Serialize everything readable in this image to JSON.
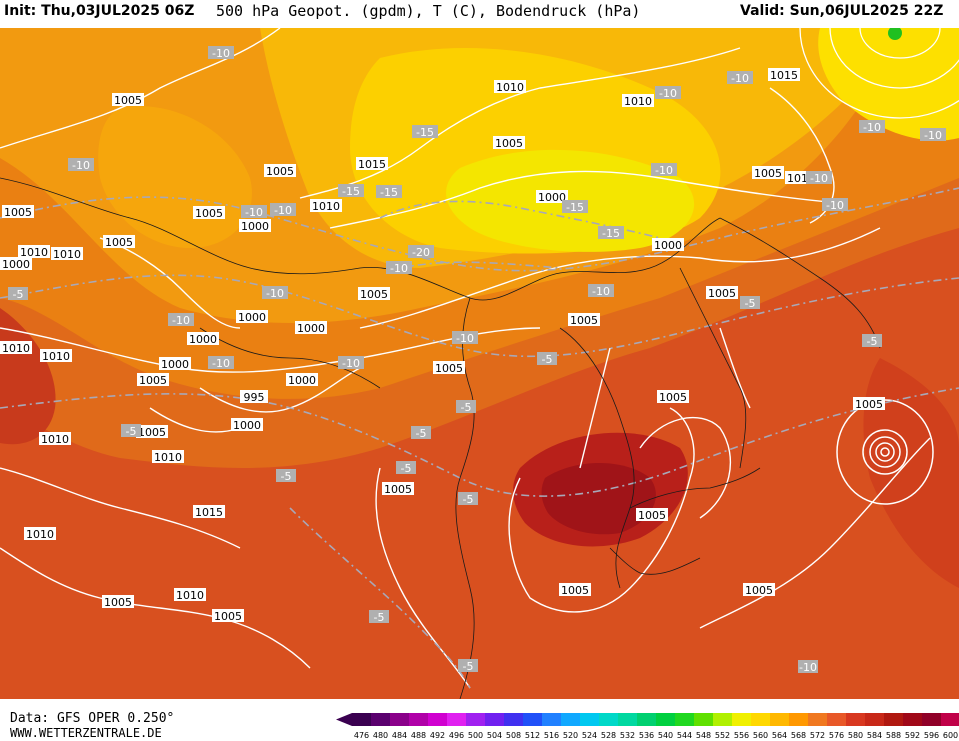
{
  "header": {
    "init": "Init: Thu,03JUL2025 06Z",
    "title": "500 hPa Geopot. (gpdm), T (C), Bodendruck (hPa)",
    "valid": "Valid: Sun,06JUL2025 22Z"
  },
  "footer": {
    "data_source": "Data: GFS OPER 0.250°",
    "website": "WWW.WETTERZENTRALE.DE"
  },
  "colorbar": {
    "labels": [
      "476",
      "480",
      "484",
      "488",
      "492",
      "496",
      "500",
      "504",
      "508",
      "512",
      "516",
      "520",
      "524",
      "528",
      "532",
      "536",
      "540",
      "544",
      "548",
      "552",
      "556",
      "560",
      "564",
      "568",
      "572",
      "576",
      "580",
      "584",
      "588",
      "592",
      "596",
      "600"
    ],
    "colors": [
      "#3a0050",
      "#5a006e",
      "#8a008a",
      "#b000a8",
      "#d000d0",
      "#e020f0",
      "#a020f0",
      "#7020f0",
      "#4030f0",
      "#2050f8",
      "#2080ff",
      "#10a8ff",
      "#00c8f0",
      "#00d8c8",
      "#00d8a0",
      "#00d070",
      "#00d040",
      "#20d820",
      "#60e000",
      "#b0f000",
      "#f0f000",
      "#ffd800",
      "#ffb800",
      "#ff9800",
      "#f07820",
      "#e85828",
      "#d83820",
      "#c82818",
      "#b01810",
      "#a00818",
      "#900028",
      "#c00048"
    ]
  },
  "pressure_labels": [
    {
      "text": "1005"
    },
    {
      "text": "1010"
    },
    {
      "text": "1015"
    },
    {
      "text": "1010"
    },
    {
      "text": "1015"
    },
    {
      "text": "1005"
    },
    {
      "text": "1005"
    },
    {
      "text": "1015"
    },
    {
      "text": "1005"
    },
    {
      "text": "1010"
    },
    {
      "text": "1000"
    },
    {
      "text": "1005"
    },
    {
      "text": "1010"
    },
    {
      "text": "1000"
    },
    {
      "text": "1005"
    },
    {
      "text": "1010"
    },
    {
      "text": "1000"
    },
    {
      "text": "1005"
    },
    {
      "text": "1005"
    },
    {
      "text": "1000"
    },
    {
      "text": "1000"
    },
    {
      "text": "1000"
    },
    {
      "text": "1005"
    },
    {
      "text": "1005"
    },
    {
      "text": "1010"
    },
    {
      "text": "1000"
    },
    {
      "text": "995"
    },
    {
      "text": "1005"
    },
    {
      "text": "1000"
    },
    {
      "text": "1000"
    },
    {
      "text": "1010"
    },
    {
      "text": "1005"
    },
    {
      "text": "1010"
    },
    {
      "text": "1005"
    },
    {
      "text": "1015"
    },
    {
      "text": "1010"
    },
    {
      "text": "1005"
    },
    {
      "text": "1010"
    },
    {
      "text": "1005"
    },
    {
      "text": "1005"
    },
    {
      "text": "1005"
    },
    {
      "text": "1005"
    },
    {
      "text": "1005"
    },
    {
      "text": "1005"
    },
    {
      "text": "1005"
    },
    {
      "text": "1010"
    },
    {
      "text": "1000"
    }
  ],
  "temp_labels": [
    {
      "text": "-10"
    },
    {
      "text": "-10"
    },
    {
      "text": "-15"
    },
    {
      "text": "-15"
    },
    {
      "text": "-10"
    },
    {
      "text": "-10"
    },
    {
      "text": "-20"
    },
    {
      "text": "-15"
    },
    {
      "text": "-15"
    },
    {
      "text": "-10"
    },
    {
      "text": "-10"
    },
    {
      "text": "-10"
    },
    {
      "text": "-10"
    },
    {
      "text": "-10"
    },
    {
      "text": "-10"
    },
    {
      "text": "-10"
    },
    {
      "text": "-10"
    },
    {
      "text": "-10"
    },
    {
      "text": "-5"
    },
    {
      "text": "-5"
    },
    {
      "text": "-5"
    },
    {
      "text": "-5"
    },
    {
      "text": "-5"
    },
    {
      "text": "-5"
    },
    {
      "text": "-5"
    },
    {
      "text": "-5"
    },
    {
      "text": "-5"
    },
    {
      "text": "-5"
    },
    {
      "text": "-5"
    },
    {
      "text": "-5"
    },
    {
      "text": "-10"
    },
    {
      "text": "-10"
    },
    {
      "text": "-10"
    },
    {
      "text": "-10"
    },
    {
      "text": "-10"
    },
    {
      "text": "-10"
    },
    {
      "text": "-15"
    }
  ]
}
